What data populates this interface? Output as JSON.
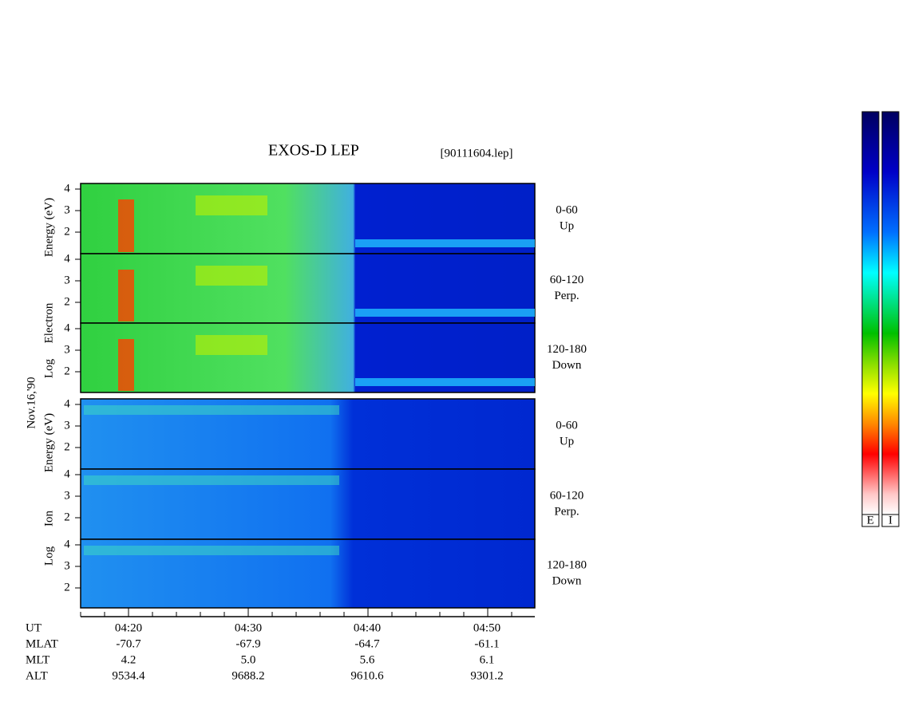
{
  "title": "EXOS-D LEP",
  "file": "[90111604.lep]",
  "date": "Nov.16,'90",
  "electron": {
    "axis_label": [
      "Log",
      "Electron",
      "Energy (eV)"
    ],
    "yticks": [
      "4",
      "3",
      "2"
    ],
    "panels": [
      {
        "angle": "0-60",
        "direction": "Up"
      },
      {
        "angle": "60-120",
        "direction": "Perp."
      },
      {
        "angle": "120-180",
        "direction": "Down"
      }
    ]
  },
  "ion": {
    "axis_label": [
      "Log",
      "Ion",
      "Energy (eV)"
    ],
    "yticks": [
      "4",
      "3",
      "2"
    ],
    "panels": [
      {
        "angle": "0-60",
        "direction": "Up"
      },
      {
        "angle": "60-120",
        "direction": "Perp."
      },
      {
        "angle": "120-180",
        "direction": "Down"
      }
    ]
  },
  "time_axis": {
    "rows": [
      {
        "label": "UT",
        "values": [
          "04:20",
          "04:30",
          "04:40",
          "04:50"
        ]
      },
      {
        "label": "MLAT",
        "values": [
          "-70.7",
          "-67.9",
          "-64.7",
          "-61.1"
        ]
      },
      {
        "label": "MLT",
        "values": [
          "4.2",
          "5.0",
          "5.6",
          "6.1"
        ]
      },
      {
        "label": "ALT",
        "values": [
          "9534.4",
          "9688.2",
          "9610.6",
          "9301.2"
        ]
      }
    ]
  },
  "colorbars": [
    "E",
    "I"
  ]
}
